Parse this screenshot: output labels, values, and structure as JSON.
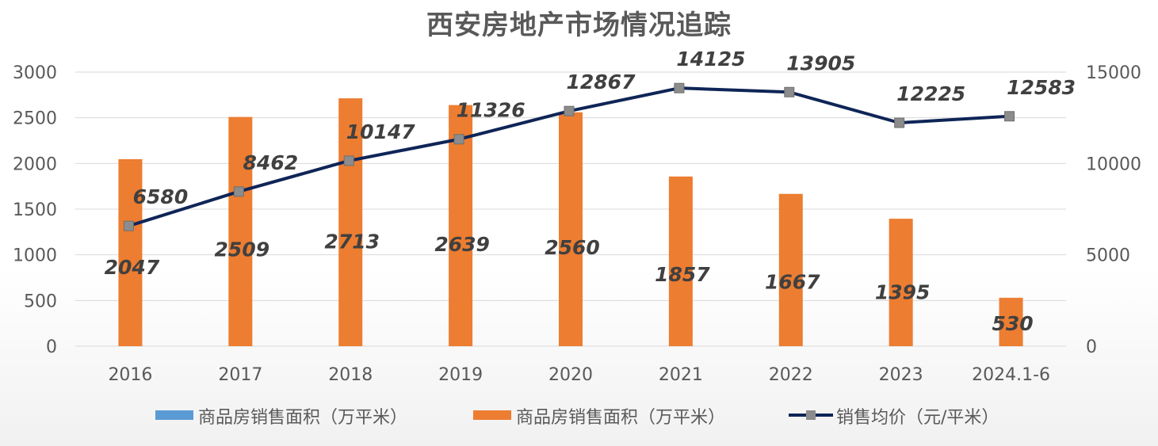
{
  "chart_data": {
    "type": "bar",
    "title": "西安房地产市场情况追踪",
    "categories": [
      "2016",
      "2017",
      "2018",
      "2019",
      "2020",
      "2021",
      "2022",
      "2023",
      "2024.1-6"
    ],
    "series": [
      {
        "name": "商品房销售面积（万平米）",
        "type": "bar",
        "axis": "left",
        "color": "#ED7D31",
        "values": [
          2047,
          2509,
          2713,
          2639,
          2560,
          1857,
          1667,
          1395,
          530
        ]
      },
      {
        "name": "销售均价（元/平米）",
        "type": "line",
        "axis": "right",
        "color": "#0F2557",
        "marker_color": "#8C8C8C",
        "values": [
          6580,
          8462,
          10147,
          11326,
          12867,
          14125,
          13905,
          12225,
          12583
        ]
      }
    ],
    "legend": [
      {
        "label": "商品房销售面积（万平米）",
        "swatch": "bar",
        "color": "#5B9BD5"
      },
      {
        "label": "商品房销售面积（万平米）",
        "swatch": "bar",
        "color": "#ED7D31"
      },
      {
        "label": "销售均价（元/平米）",
        "swatch": "line-marker",
        "color": "#0F2557"
      }
    ],
    "left_axis": {
      "ylim": [
        0,
        3000
      ],
      "ticks": [
        0,
        500,
        1000,
        1500,
        2000,
        2500,
        3000
      ]
    },
    "right_axis": {
      "ylim": [
        0,
        15000
      ],
      "ticks": [
        0,
        5000,
        10000,
        15000
      ]
    },
    "grid": true,
    "legend_position": "bottom"
  }
}
